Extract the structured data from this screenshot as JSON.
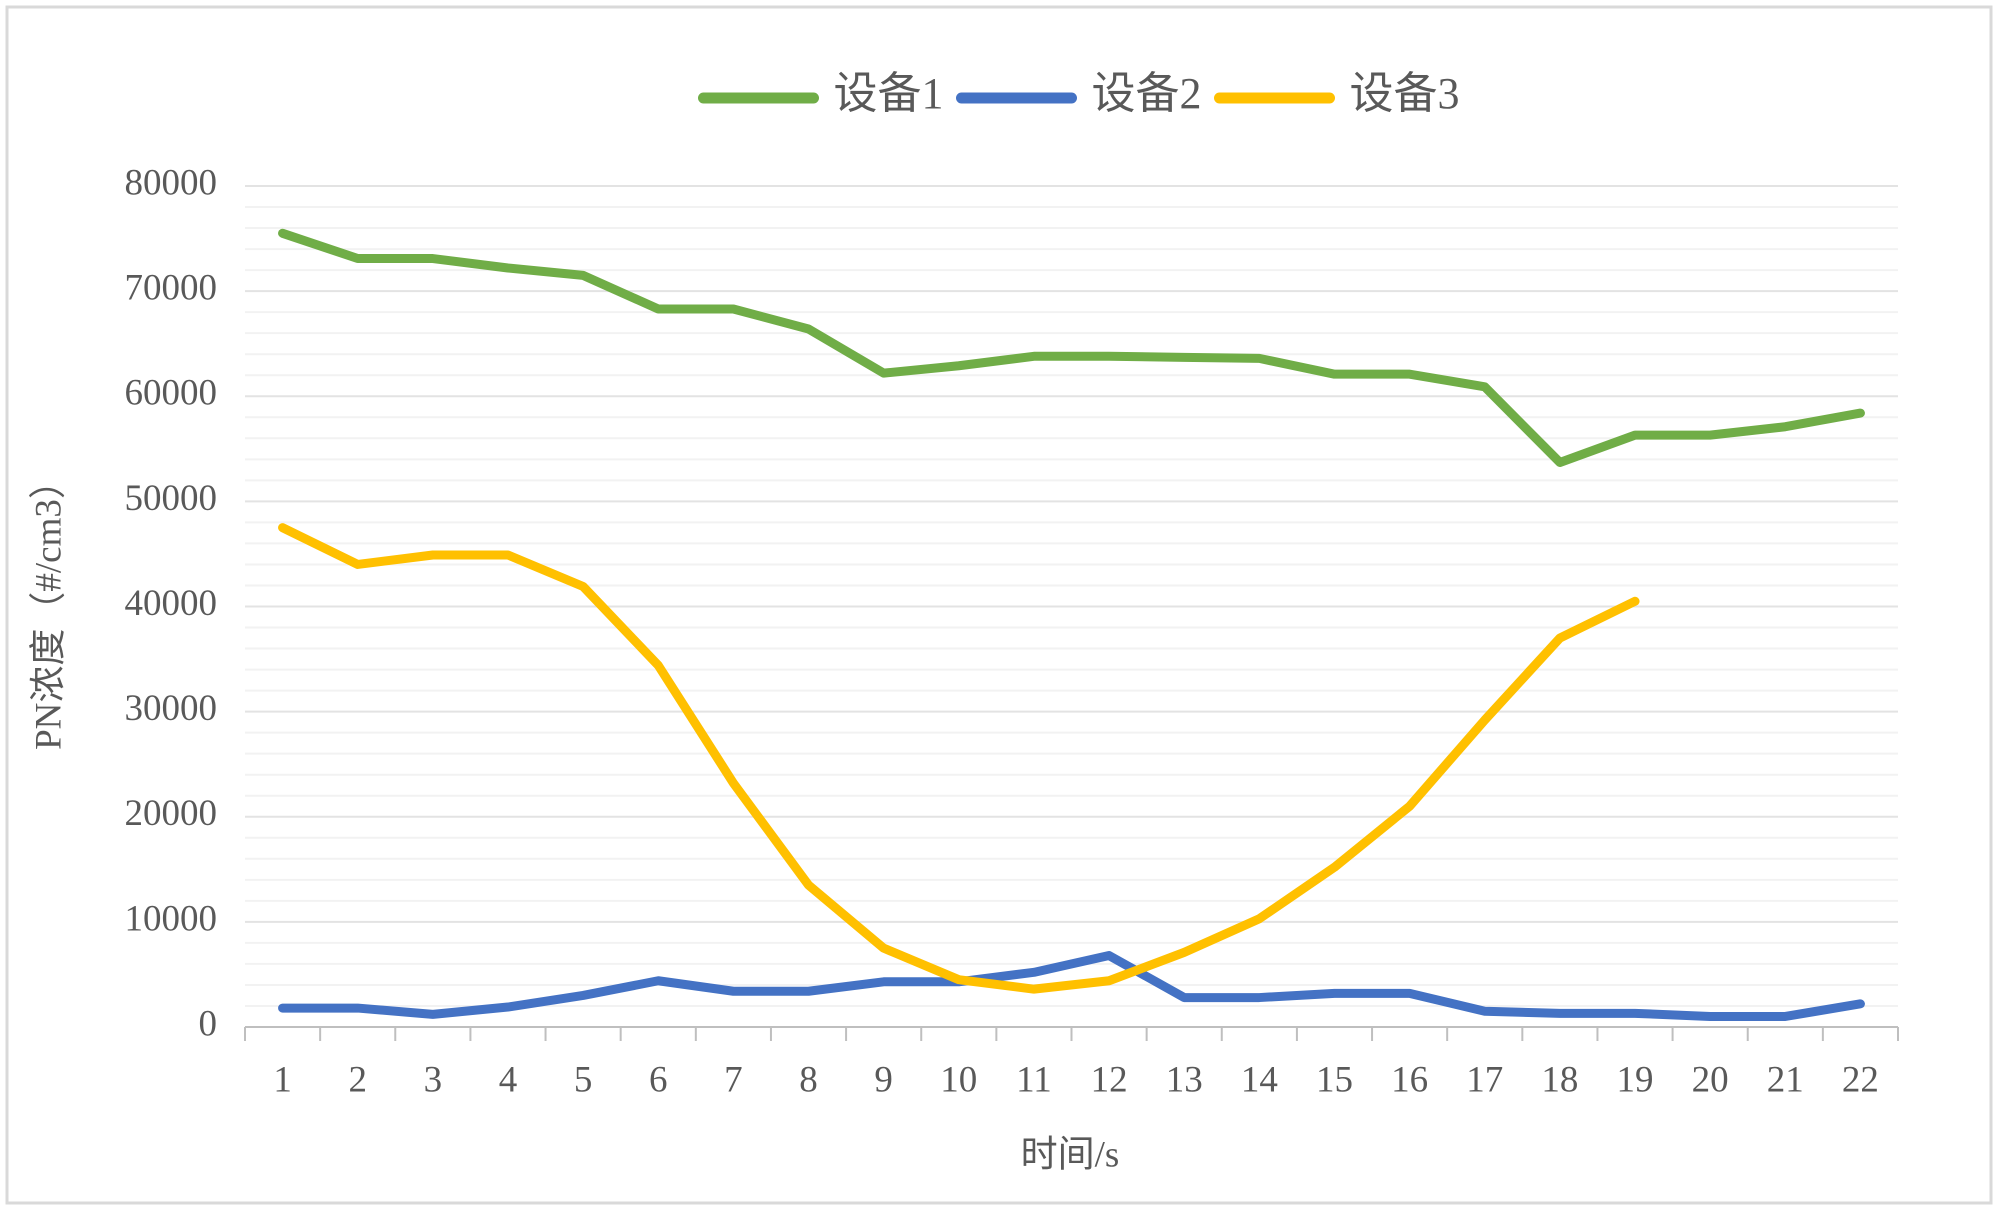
{
  "chart_data": {
    "type": "line",
    "x_label": "时间/s",
    "y_label": "PN浓度（#/cm3）",
    "categories": [
      "1",
      "2",
      "3",
      "4",
      "5",
      "6",
      "7",
      "8",
      "9",
      "10",
      "11",
      "12",
      "13",
      "14",
      "15",
      "16",
      "17",
      "18",
      "19",
      "20",
      "21",
      "22"
    ],
    "series": [
      {
        "name": "设备1",
        "color": "#70ad47",
        "values": [
          75500,
          73100,
          73100,
          72200,
          71500,
          68300,
          68300,
          66400,
          62200,
          62900,
          63800,
          63800,
          63700,
          63600,
          62100,
          62100,
          60900,
          53700,
          56300,
          56300,
          57100,
          58400
        ]
      },
      {
        "name": "设备2",
        "color": "#4472c4",
        "values": [
          1800,
          1800,
          1200,
          1900,
          3000,
          4400,
          3400,
          3400,
          4300,
          4300,
          5200,
          6800,
          2800,
          2800,
          3200,
          3200,
          1500,
          1300,
          1300,
          1000,
          1000,
          2200
        ]
      },
      {
        "name": "设备3",
        "color": "#ffc000",
        "values": [
          47500,
          44000,
          44900,
          44900,
          41900,
          34400,
          23200,
          13500,
          7500,
          4500,
          3600,
          4400,
          7100,
          10300,
          15200,
          21000,
          29200,
          37000,
          40500,
          null,
          null,
          null
        ]
      }
    ],
    "ylim": [
      0,
      80000
    ],
    "yticks": [
      0,
      10000,
      20000,
      30000,
      40000,
      50000,
      60000,
      70000,
      80000
    ],
    "y_minor_ticks": [
      2000,
      4000,
      6000,
      8000,
      12000,
      14000,
      16000,
      18000,
      22000,
      24000,
      26000,
      28000,
      32000,
      34000,
      36000,
      38000,
      42000,
      44000,
      46000,
      48000,
      52000,
      54000,
      56000,
      58000,
      62000,
      64000,
      66000,
      68000,
      72000,
      74000,
      76000,
      78000
    ],
    "grid": true,
    "legend": "top"
  }
}
